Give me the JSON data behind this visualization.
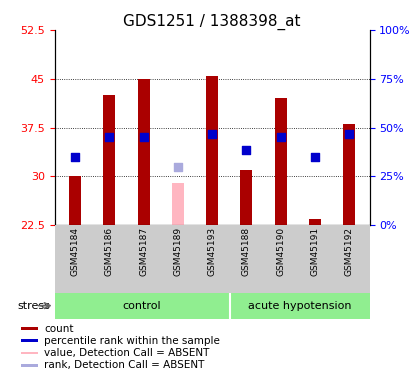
{
  "title": "GDS1251 / 1388398_at",
  "samples": [
    "GSM45184",
    "GSM45186",
    "GSM45187",
    "GSM45189",
    "GSM45193",
    "GSM45188",
    "GSM45190",
    "GSM45191",
    "GSM45192"
  ],
  "bar_values": [
    30.1,
    42.5,
    44.9,
    null,
    45.5,
    31.0,
    42.0,
    23.5,
    38.0
  ],
  "absent_bar_values": [
    null,
    null,
    null,
    29.0,
    null,
    null,
    null,
    null,
    null
  ],
  "blue_dot_values": [
    33.0,
    36.0,
    36.0,
    null,
    36.5,
    34.0,
    36.0,
    33.0,
    36.5
  ],
  "absent_rank_values": [
    null,
    null,
    null,
    31.5,
    null,
    null,
    null,
    null,
    null
  ],
  "ylim_left": [
    22.5,
    52.5
  ],
  "ylim_right": [
    0,
    100
  ],
  "yticks_left": [
    22.5,
    30.0,
    37.5,
    45.0,
    52.5
  ],
  "yticklabels_left": [
    "22.5",
    "30",
    "37.5",
    "45",
    "52.5"
  ],
  "yticks_right": [
    0,
    25,
    50,
    75,
    100
  ],
  "yticklabels_right": [
    "0%",
    "25%",
    "50%",
    "75%",
    "100%"
  ],
  "n_control": 5,
  "n_hypo": 4,
  "bar_color": "#AA0000",
  "absent_bar_color": "#FFB6C1",
  "blue_dot_color": "#0000CC",
  "absent_rank_color": "#AAAADD",
  "bg_color": "#FFFFFF",
  "tick_area_color": "#CCCCCC",
  "group_bg_color": "#90EE90",
  "legend_items": [
    {
      "label": "count",
      "color": "#AA0000"
    },
    {
      "label": "percentile rank within the sample",
      "color": "#0000CC"
    },
    {
      "label": "value, Detection Call = ABSENT",
      "color": "#FFB6C1"
    },
    {
      "label": "rank, Detection Call = ABSENT",
      "color": "#AAAADD"
    }
  ],
  "bar_width": 0.35,
  "blue_dot_size": 30,
  "title_fontsize": 11,
  "tick_fontsize": 8,
  "label_fontsize": 7.5,
  "group_fontsize": 8
}
